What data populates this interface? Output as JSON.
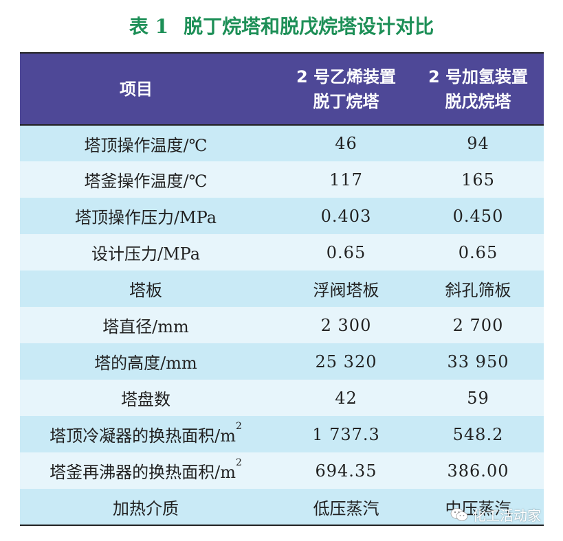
{
  "title": {
    "number": "表 1",
    "text": "脱丁烷塔和脱戊烷塔设计对比"
  },
  "table": {
    "headers": {
      "item": "项目",
      "col2_line1": "2 号乙烯装置",
      "col2_line2": "脱丁烷塔",
      "col3_line1": "2 号加氢装置",
      "col3_line2": "脱戊烷塔"
    },
    "rows": [
      {
        "label": "塔顶操作温度/℃",
        "a": "46",
        "b": "94"
      },
      {
        "label": "塔釜操作温度/℃",
        "a": "117",
        "b": "165"
      },
      {
        "label": "塔顶操作压力/MPa",
        "a": "0.403",
        "b": "0.450"
      },
      {
        "label": "设计压力/MPa",
        "a": "0.65",
        "b": "0.65"
      },
      {
        "label": "塔板",
        "a": "浮阀塔板",
        "b": "斜孔筛板"
      },
      {
        "label": "塔直径/mm",
        "a": "2 300",
        "b": "2 700"
      },
      {
        "label": "塔的高度/mm",
        "a": "25 320",
        "b": "33 950"
      },
      {
        "label": "塔盘数",
        "a": "42",
        "b": "59"
      },
      {
        "label": "塔顶冷凝器的换热面积/m",
        "label_sup": "2",
        "a": "1 737.3",
        "b": "548.2"
      },
      {
        "label": "塔釜再沸器的换热面积/m",
        "label_sup": "2",
        "a": "694.35",
        "b": "386.00"
      },
      {
        "label": "加热介质",
        "a": "低压蒸汽",
        "b": "中压蒸汽"
      }
    ]
  },
  "watermark": {
    "text": "化工活动家",
    "icon": "wechat-icon"
  },
  "colors": {
    "title": "#1d8f57",
    "header_bg": "#4e4897",
    "row_odd": "#c9eaf6",
    "row_even": "#e7f5fb"
  }
}
